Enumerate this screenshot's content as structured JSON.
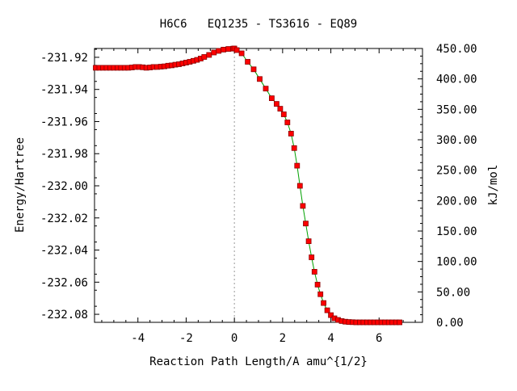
{
  "chart_data": {
    "type": "line",
    "title": "H6C6   EQ1235 - TS3616 - EQ89",
    "xlabel": "Reaction Path Length/A amu^{1/2}",
    "ylabel": "Energy/Hartree",
    "y2label": "kJ/mol",
    "xlim": [
      -5.8,
      7.8
    ],
    "ylim": [
      -232.085,
      -231.9145
    ],
    "y2lim": [
      0,
      450
    ],
    "x_ticks": [
      -4,
      -2,
      0,
      2,
      4,
      6
    ],
    "x_tick_labels": [
      "-4",
      "-2",
      "0",
      "2",
      "4",
      "6"
    ],
    "y_ticks": [
      -231.92,
      -231.94,
      -231.96,
      -231.98,
      -232.0,
      -232.02,
      -232.04,
      -232.06,
      -232.08
    ],
    "y_tick_labels": [
      "-231.92",
      "-231.94",
      "-231.96",
      "-231.98",
      "-232.00",
      "-232.02",
      "-232.04",
      "-232.06",
      "-232.08"
    ],
    "y2_ticks": [
      0,
      50,
      100,
      150,
      200,
      250,
      300,
      350,
      400,
      450
    ],
    "y2_tick_labels": [
      "0.00",
      "50.00",
      "100.00",
      "150.00",
      "200.00",
      "250.00",
      "300.00",
      "350.00",
      "400.00",
      "450.00"
    ],
    "ts_marker_x": 0,
    "grid": false,
    "colors": {
      "line": "#00a000",
      "marker_fill": "#ff0000",
      "marker_edge": "#8b0000",
      "ts_marker": "#999999",
      "axis": "#000000"
    },
    "series": [
      {
        "x": [
          -5.75,
          -5.6,
          -5.45,
          -5.3,
          -5.15,
          -5.0,
          -4.85,
          -4.7,
          -4.55,
          -4.4,
          -4.25,
          -4.1,
          -3.95,
          -3.8,
          -3.65,
          -3.5,
          -3.35,
          -3.2,
          -3.05,
          -2.9,
          -2.75,
          -2.6,
          -2.45,
          -2.3,
          -2.15,
          -2.0,
          -1.85,
          -1.7,
          -1.55,
          -1.4,
          -1.25,
          -1.05,
          -0.85,
          -0.65,
          -0.45,
          -0.25,
          -0.05,
          0.0,
          0.1,
          0.3,
          0.55,
          0.8,
          1.05,
          1.3,
          1.55,
          1.75,
          1.9,
          2.05,
          2.2,
          2.35,
          2.48,
          2.6,
          2.72,
          2.84,
          2.96,
          3.08,
          3.2,
          3.32,
          3.45,
          3.57,
          3.7,
          3.85,
          4.0,
          4.15,
          4.3,
          4.45,
          4.6,
          4.75,
          4.9,
          5.05,
          5.2,
          5.35,
          5.5,
          5.65,
          5.8,
          5.95,
          6.1,
          6.25,
          6.4,
          6.55,
          6.7,
          6.85
        ],
        "y": [
          -231.9265,
          -231.9265,
          -231.9265,
          -231.9265,
          -231.9265,
          -231.9265,
          -231.9265,
          -231.9265,
          -231.9265,
          -231.9265,
          -231.9263,
          -231.926,
          -231.926,
          -231.9262,
          -231.9265,
          -231.9263,
          -231.926,
          -231.926,
          -231.9258,
          -231.9256,
          -231.9252,
          -231.925,
          -231.9246,
          -231.9243,
          -231.9238,
          -231.9233,
          -231.9228,
          -231.9222,
          -231.9216,
          -231.9208,
          -231.9198,
          -231.9185,
          -231.917,
          -231.916,
          -231.9152,
          -231.9148,
          -231.9146,
          -231.9145,
          -231.9155,
          -231.9175,
          -231.9228,
          -231.9275,
          -231.9335,
          -231.9395,
          -231.9455,
          -231.949,
          -231.952,
          -231.9555,
          -231.9605,
          -231.9675,
          -231.9765,
          -231.9875,
          -232.0,
          -232.0125,
          -232.0235,
          -232.0345,
          -232.0445,
          -232.0535,
          -232.0615,
          -232.0675,
          -232.073,
          -232.0775,
          -232.0805,
          -232.0825,
          -232.0835,
          -232.0842,
          -232.0846,
          -232.0848,
          -232.0849,
          -232.085,
          -232.085,
          -232.085,
          -232.085,
          -232.085,
          -232.085,
          -232.085,
          -232.085,
          -232.085,
          -232.085,
          -232.085,
          -232.085,
          -232.085
        ]
      }
    ]
  }
}
